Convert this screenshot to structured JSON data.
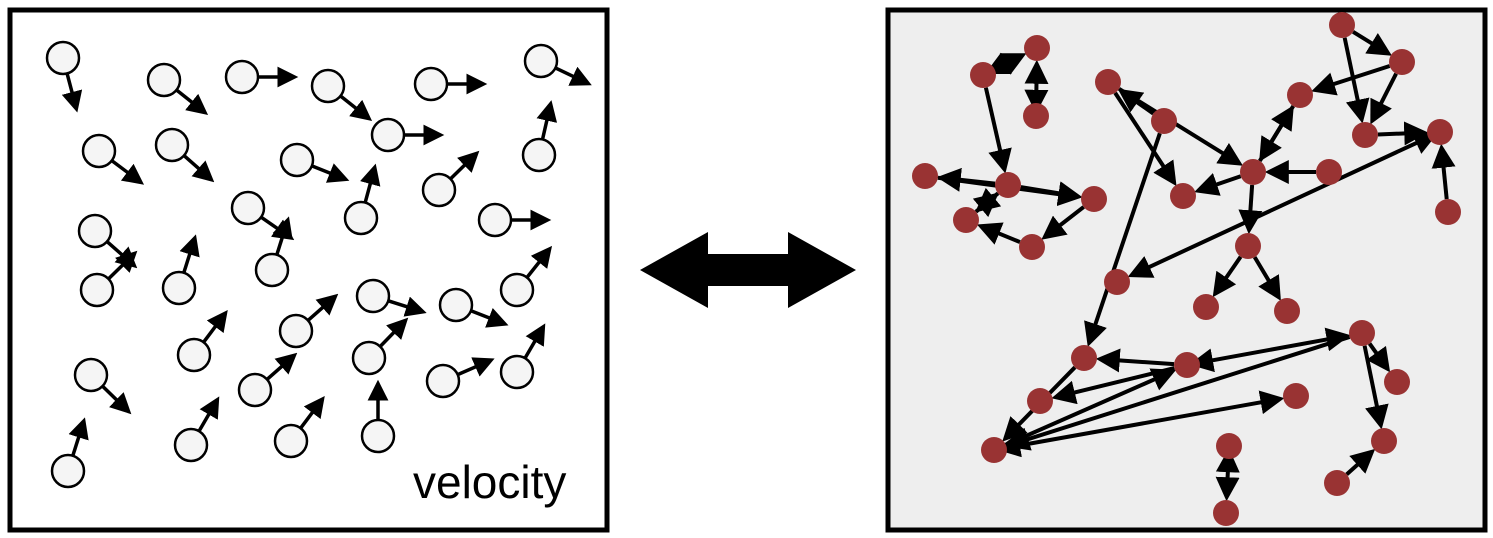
{
  "left_panel": {
    "label": "velocity",
    "particle_fill": "#f5f5f5",
    "particles": [
      {
        "d": [
          0.25,
          0.95
        ]
      },
      {
        "d": [
          0.78,
          0.62
        ]
      },
      {
        "d": [
          1,
          0
        ]
      },
      {
        "d": [
          0.78,
          0.62
        ]
      },
      {
        "d": [
          1,
          0
        ]
      },
      {
        "d": [
          0.9,
          0.43
        ]
      },
      {
        "d": [
          0.8,
          0.6
        ]
      },
      {
        "d": [
          0.75,
          0.66
        ]
      },
      {
        "d": [
          0.93,
          0.37
        ]
      },
      {
        "d": [
          1,
          0
        ]
      },
      {
        "d": [
          0.22,
          -0.97
        ]
      },
      {
        "d": [
          0.82,
          0.57
        ]
      },
      {
        "d": [
          0.72,
          -0.7
        ]
      },
      {
        "d": [
          0.26,
          -0.96
        ]
      },
      {
        "d": [
          1,
          0
        ]
      },
      {
        "d": [
          0.75,
          0.66
        ]
      },
      {
        "d": [
          0.3,
          -0.95
        ]
      },
      {
        "d": [
          0.3,
          -0.95
        ]
      },
      {
        "d": [
          0.72,
          -0.7
        ]
      },
      {
        "d": [
          0.95,
          0.3
        ]
      },
      {
        "d": [
          0.9,
          0.35
        ]
      },
      {
        "d": [
          0.62,
          -0.78
        ]
      },
      {
        "d": [
          0.72,
          0.7
        ]
      },
      {
        "d": [
          0.6,
          -0.8
        ]
      },
      {
        "d": [
          0.75,
          -0.66
        ]
      },
      {
        "d": [
          0.7,
          -0.72
        ]
      },
      {
        "d": [
          0.92,
          -0.4
        ]
      },
      {
        "d": [
          0.5,
          -0.86
        ]
      },
      {
        "d": [
          0.3,
          -0.95
        ]
      },
      {
        "d": [
          0.5,
          -0.86
        ]
      },
      {
        "d": [
          0.75,
          -0.66
        ]
      },
      {
        "d": [
          0.6,
          -0.8
        ]
      },
      {
        "d": [
          0,
          -1
        ]
      },
      {
        "d": [
          0.5,
          -0.86
        ]
      }
    ]
  },
  "right_panel": {
    "node_color": "#993333",
    "background": "#eeeeee",
    "edges": [
      [
        0,
        1,
        "double"
      ],
      [
        2,
        1,
        "double"
      ],
      [
        0,
        3,
        "forward"
      ],
      [
        3,
        4,
        "forward"
      ],
      [
        3,
        5,
        "forward"
      ],
      [
        3,
        6,
        "forward"
      ],
      [
        5,
        3,
        "forward"
      ],
      [
        6,
        7,
        "forward"
      ],
      [
        7,
        5,
        "forward"
      ],
      [
        4,
        6,
        "forward"
      ],
      [
        8,
        9,
        "forward"
      ],
      [
        9,
        10,
        "forward"
      ],
      [
        9,
        11,
        "forward"
      ],
      [
        11,
        10,
        "forward"
      ],
      [
        12,
        11,
        "forward"
      ],
      [
        11,
        13,
        "forward"
      ],
      [
        13,
        11,
        "forward"
      ],
      [
        11,
        14,
        "forward"
      ],
      [
        14,
        15,
        "forward"
      ],
      [
        14,
        16,
        "forward"
      ],
      [
        17,
        18,
        "forward"
      ],
      [
        18,
        13,
        "forward"
      ],
      [
        17,
        19,
        "forward"
      ],
      [
        18,
        19,
        "forward"
      ],
      [
        19,
        20,
        "forward"
      ],
      [
        21,
        20,
        "forward"
      ],
      [
        20,
        22,
        "double"
      ],
      [
        8,
        23,
        "forward"
      ],
      [
        24,
        23,
        "forward"
      ],
      [
        24,
        25,
        "forward"
      ],
      [
        26,
        24,
        "forward"
      ],
      [
        26,
        27,
        "double"
      ],
      [
        28,
        29,
        "double"
      ],
      [
        24,
        30,
        "double"
      ],
      [
        30,
        31,
        "forward"
      ],
      [
        30,
        32,
        "forward"
      ],
      [
        33,
        32,
        "forward"
      ],
      [
        30,
        34,
        "forward"
      ],
      [
        30,
        35,
        "forward"
      ],
      [
        30,
        26,
        "forward"
      ],
      [
        23,
        26,
        "forward"
      ]
    ]
  },
  "connector": {
    "type": "double-headed-arrow",
    "color": "#000000"
  }
}
